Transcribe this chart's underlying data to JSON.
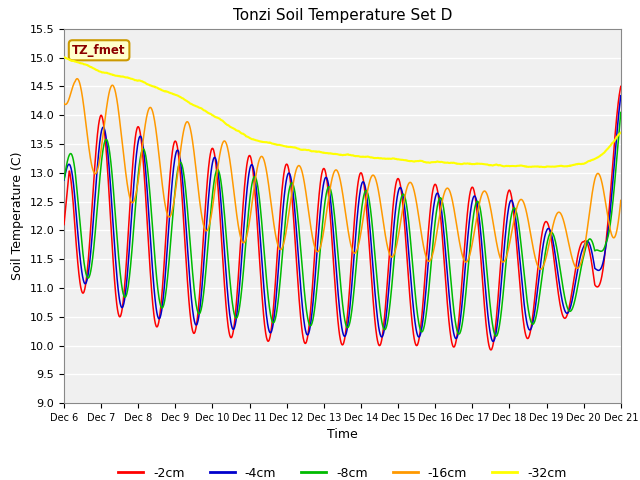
{
  "title": "Tonzi Soil Temperature Set D",
  "xlabel": "Time",
  "ylabel": "Soil Temperature (C)",
  "ylim": [
    9.0,
    15.5
  ],
  "yticks": [
    9.0,
    9.5,
    10.0,
    10.5,
    11.0,
    11.5,
    12.0,
    12.5,
    13.0,
    13.5,
    14.0,
    14.5,
    15.0,
    15.5
  ],
  "colors": {
    "-2cm": "#ff0000",
    "-4cm": "#0000cc",
    "-8cm": "#00bb00",
    "-16cm": "#ff9900",
    "-32cm": "#ffff00"
  },
  "legend_labels": [
    "-2cm",
    "-4cm",
    "-8cm",
    "-16cm",
    "-32cm"
  ],
  "annotation_text": "TZ_fmet",
  "annotation_color": "#8b0000",
  "annotation_bg": "#ffffcc",
  "annotation_border": "#cc9900",
  "background_color": "#e8e8e8",
  "plot_bg": "#f0f0f0",
  "xtick_labels": [
    "Dec 6",
    "Dec 7",
    "Dec 8",
    "Dec 9",
    "Dec 10",
    "Dec 11",
    "Dec 12",
    "Dec 13",
    "Dec 14",
    "Dec 15",
    "Dec 16",
    "Dec 17",
    "Dec 18",
    "Dec 19",
    "Dec 20",
    "Dec 21"
  ],
  "n_points": 1500,
  "total_days": 15
}
